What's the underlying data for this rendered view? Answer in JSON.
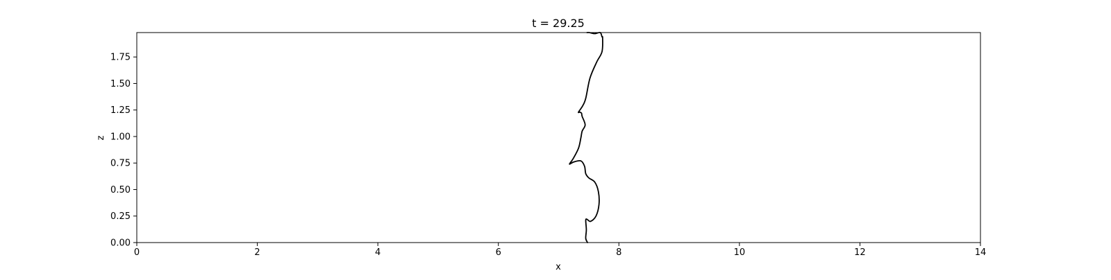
{
  "chart_data": {
    "type": "line",
    "title": "t = 29.25",
    "xlabel": "x",
    "ylabel": "z",
    "xlim": [
      0,
      14
    ],
    "ylim": [
      0,
      1.98
    ],
    "grid": false,
    "xticks": [
      0,
      2,
      4,
      6,
      8,
      10,
      12,
      14
    ],
    "xtick_labels": [
      "0",
      "2",
      "4",
      "6",
      "8",
      "10",
      "12",
      "14"
    ],
    "yticks": [
      0.0,
      0.25,
      0.5,
      0.75,
      1.0,
      1.25,
      1.5,
      1.75
    ],
    "ytick_labels": [
      "0.00",
      "0.25",
      "0.50",
      "0.75",
      "1.00",
      "1.25",
      "1.50",
      "1.75"
    ],
    "line_color": "#000000",
    "series": [
      {
        "x": [
          7.48,
          7.45,
          7.46,
          7.45,
          7.47,
          7.53,
          7.62,
          7.67,
          7.66,
          7.6,
          7.5,
          7.45,
          7.43,
          7.37,
          7.25,
          7.18,
          7.24,
          7.33,
          7.37,
          7.39,
          7.44,
          7.39,
          7.38,
          7.35,
          7.33,
          7.4,
          7.45,
          7.52,
          7.63,
          7.72,
          7.73,
          7.72,
          7.69,
          7.6,
          7.51,
          7.47
        ],
        "y": [
          0.0,
          0.04,
          0.12,
          0.21,
          0.22,
          0.2,
          0.25,
          0.36,
          0.48,
          0.57,
          0.61,
          0.65,
          0.72,
          0.77,
          0.76,
          0.74,
          0.79,
          0.89,
          0.99,
          1.05,
          1.11,
          1.19,
          1.22,
          1.23,
          1.23,
          1.29,
          1.36,
          1.55,
          1.7,
          1.8,
          1.93,
          1.94,
          1.98,
          1.97,
          1.98,
          1.98
        ]
      }
    ]
  }
}
